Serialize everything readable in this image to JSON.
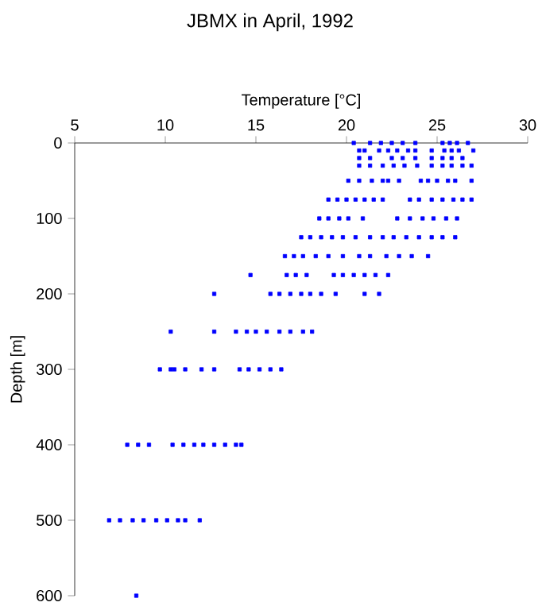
{
  "chart_data": {
    "type": "scatter",
    "title": "JBMX in April, 1992",
    "xlabel": "Temperature [°C]",
    "ylabel": "Depth [m]",
    "xlim": [
      5,
      30
    ],
    "xticks": [
      5,
      10,
      15,
      20,
      25,
      30
    ],
    "ylim": [
      600,
      0
    ],
    "yticks": [
      0,
      100,
      200,
      300,
      400,
      500,
      600
    ],
    "marker": "square",
    "grid": false,
    "series": [
      {
        "color": "#0000ff",
        "x": [
          20.4,
          21.3,
          21.9,
          22.5,
          23.1,
          23.8,
          25.3,
          25.7,
          26.1,
          26.7,
          20.7,
          21.0,
          21.8,
          22.3,
          22.8,
          23.4,
          23.8,
          24.7,
          25.4,
          25.8,
          26.2,
          27.0,
          20.7,
          21.3,
          22.5,
          23.1,
          23.8,
          24.7,
          25.3,
          25.8,
          26.4,
          20.7,
          21.3,
          22.0,
          22.6,
          23.2,
          23.9,
          24.7,
          25.3,
          25.8,
          26.4,
          26.9,
          20.1,
          20.7,
          21.4,
          22.0,
          22.3,
          22.9,
          24.1,
          24.5,
          25.0,
          25.6,
          26.0,
          26.9,
          19.0,
          19.5,
          20.0,
          20.5,
          21.0,
          21.5,
          22.0,
          23.5,
          24.0,
          24.7,
          25.3,
          25.9,
          26.4,
          26.9,
          18.5,
          19.0,
          19.6,
          20.1,
          20.9,
          22.8,
          23.5,
          24.2,
          24.8,
          25.5,
          26.1,
          17.5,
          18.0,
          18.6,
          19.2,
          19.8,
          20.5,
          21.3,
          22.0,
          22.6,
          23.3,
          24.0,
          24.7,
          25.3,
          26.0,
          16.6,
          17.1,
          17.6,
          18.3,
          19.0,
          19.8,
          20.7,
          21.3,
          22.2,
          22.9,
          23.6,
          24.5,
          14.7,
          16.7,
          17.2,
          17.8,
          19.3,
          19.8,
          20.4,
          21.0,
          21.6,
          22.3,
          12.7,
          15.8,
          16.3,
          16.9,
          17.5,
          18.0,
          18.6,
          19.4,
          21.0,
          21.8,
          10.3,
          12.7,
          13.9,
          14.5,
          15.0,
          15.6,
          16.3,
          16.9,
          17.6,
          18.1,
          9.7,
          10.3,
          10.5,
          11.1,
          12.0,
          12.7,
          14.1,
          14.6,
          15.2,
          15.8,
          16.4,
          7.9,
          8.5,
          9.1,
          10.4,
          11.0,
          11.6,
          12.1,
          12.7,
          13.3,
          13.9,
          14.2,
          6.9,
          7.5,
          8.2,
          8.8,
          9.5,
          10.1,
          10.7,
          11.1,
          11.9,
          8.4
        ],
        "values": [
          0,
          0,
          0,
          0,
          0,
          0,
          0,
          0,
          0,
          0,
          10,
          10,
          10,
          10,
          10,
          10,
          10,
          10,
          10,
          10,
          10,
          10,
          20,
          20,
          20,
          20,
          20,
          20,
          20,
          20,
          20,
          30,
          30,
          30,
          30,
          30,
          30,
          30,
          30,
          30,
          30,
          30,
          50,
          50,
          50,
          50,
          50,
          50,
          50,
          50,
          50,
          50,
          50,
          50,
          75,
          75,
          75,
          75,
          75,
          75,
          75,
          75,
          75,
          75,
          75,
          75,
          75,
          75,
          100,
          100,
          100,
          100,
          100,
          100,
          100,
          100,
          100,
          100,
          100,
          125,
          125,
          125,
          125,
          125,
          125,
          125,
          125,
          125,
          125,
          125,
          125,
          125,
          125,
          150,
          150,
          150,
          150,
          150,
          150,
          150,
          150,
          150,
          150,
          150,
          150,
          175,
          175,
          175,
          175,
          175,
          175,
          175,
          175,
          175,
          175,
          200,
          200,
          200,
          200,
          200,
          200,
          200,
          200,
          200,
          200,
          250,
          250,
          250,
          250,
          250,
          250,
          250,
          250,
          250,
          250,
          300,
          300,
          300,
          300,
          300,
          300,
          300,
          300,
          300,
          300,
          300,
          400,
          400,
          400,
          400,
          400,
          400,
          400,
          400,
          400,
          400,
          400,
          500,
          500,
          500,
          500,
          500,
          500,
          500,
          500,
          500,
          600
        ]
      }
    ]
  }
}
